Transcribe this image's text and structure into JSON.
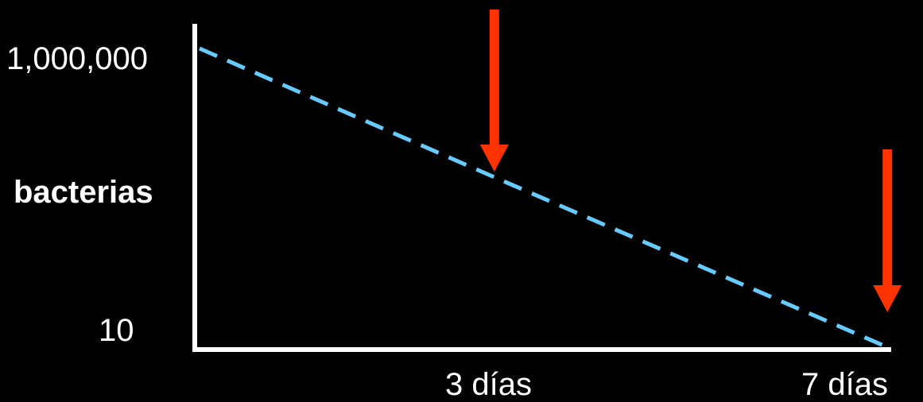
{
  "chart_data": {
    "type": "line",
    "ylabel": "bacterias",
    "y_tick_labels": [
      "1,000,000",
      "10"
    ],
    "x_tick_labels": [
      "3 días",
      "7 días"
    ],
    "y_scale": "log",
    "ylim": [
      10,
      1000000
    ],
    "series": [
      {
        "x": [
          0,
          3,
          7
        ],
        "y": [
          1000000,
          7000,
          10
        ]
      }
    ],
    "markers": [
      {
        "x": 3
      },
      {
        "x": 7
      }
    ],
    "grid": false,
    "colors": {
      "series": "#66ccff",
      "markers": "#ff3300",
      "axes": "#ffffff",
      "background": "#000000"
    }
  }
}
